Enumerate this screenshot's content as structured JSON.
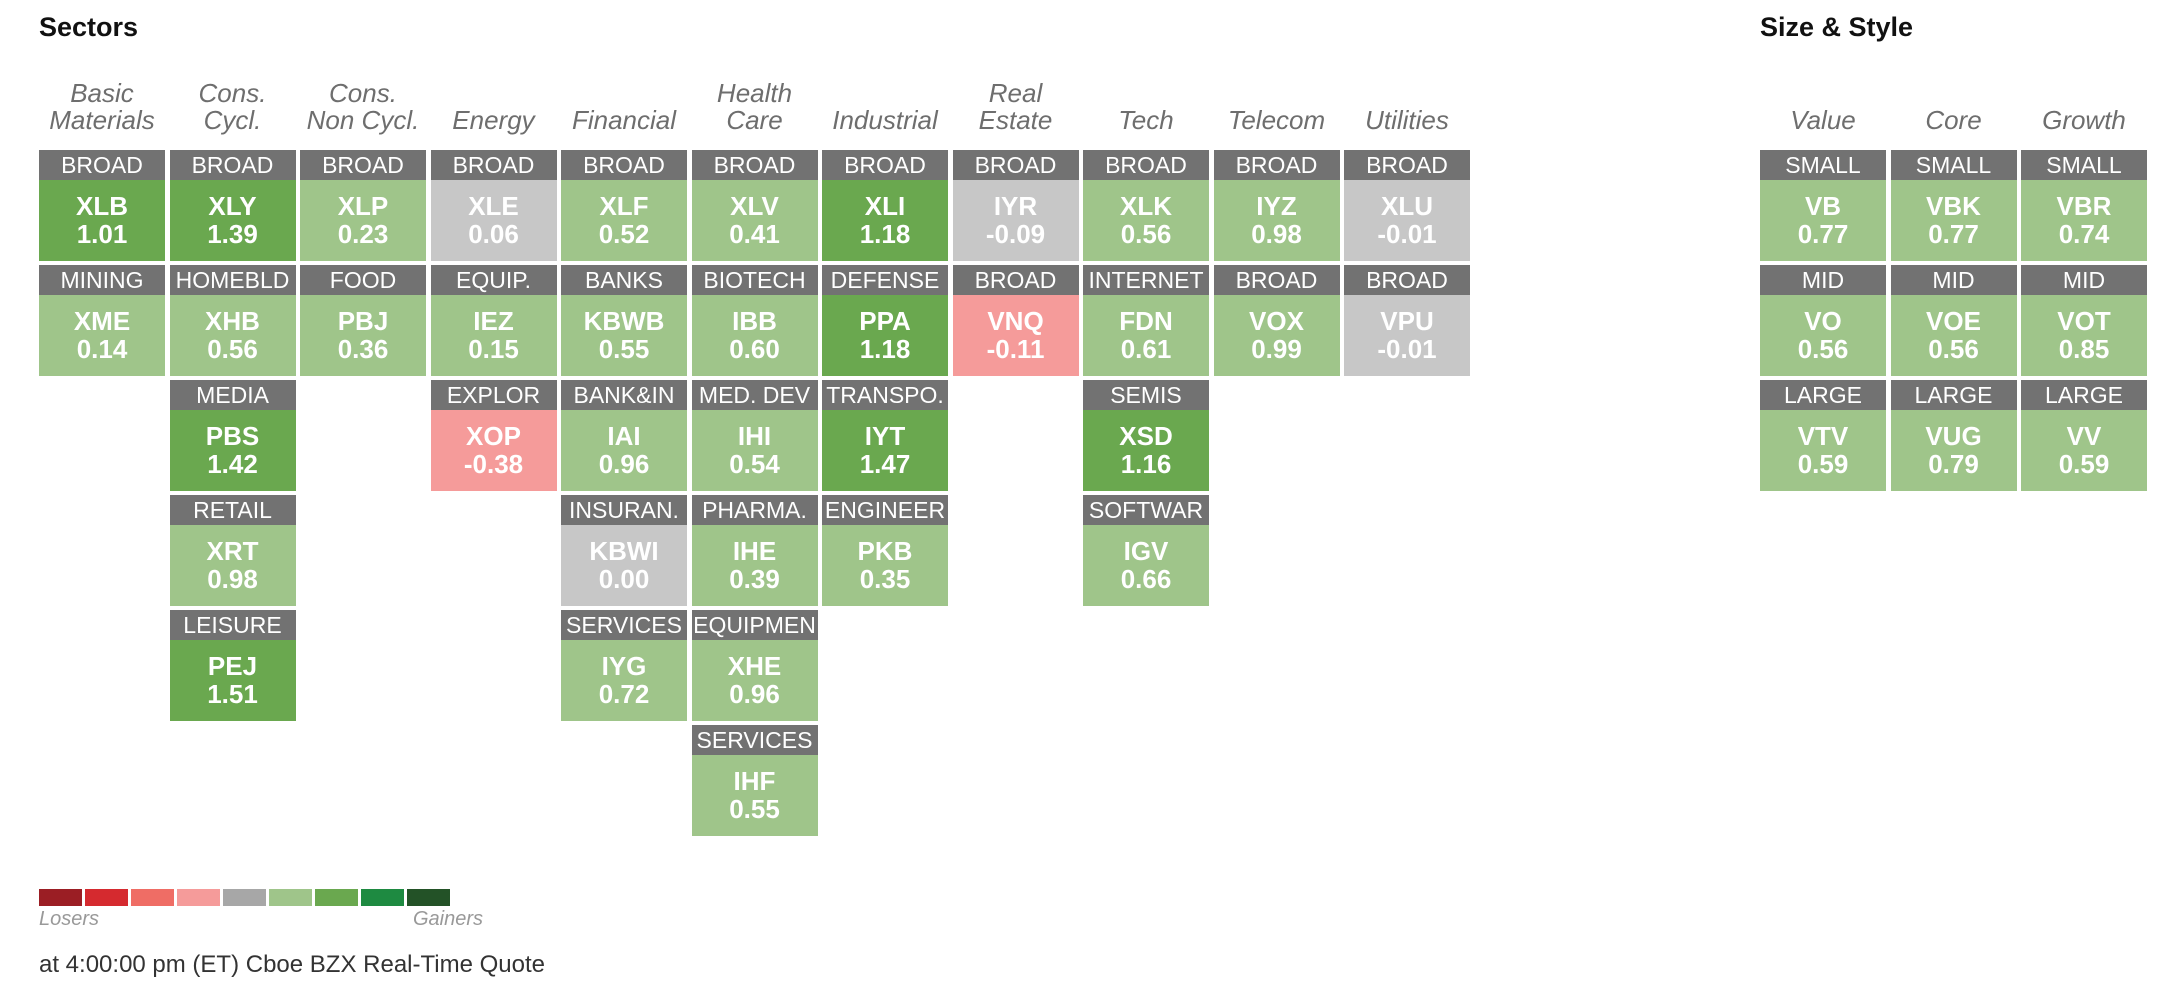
{
  "sectors_title": "Sectors",
  "size_style_title": "Size & Style",
  "colors": {
    "green_dark": "#6aa84f",
    "green_light": "#9fc58a",
    "neutral": "#c7c7c7",
    "red_light": "#f59b9a",
    "label_bg": "#727272"
  },
  "sector_columns": [
    {
      "header": [
        "Basic",
        "Materials"
      ],
      "tiles": [
        {
          "label": "BROAD",
          "ticker": "XLB",
          "change": "1.01",
          "color": "#6aa84f"
        },
        {
          "label": "MINING",
          "ticker": "XME",
          "change": "0.14",
          "color": "#9fc58a"
        }
      ]
    },
    {
      "header": [
        "Cons.",
        "Cycl."
      ],
      "tiles": [
        {
          "label": "BROAD",
          "ticker": "XLY",
          "change": "1.39",
          "color": "#6aa84f"
        },
        {
          "label": "HOMEBLD",
          "ticker": "XHB",
          "change": "0.56",
          "color": "#9fc58a"
        },
        {
          "label": "MEDIA",
          "ticker": "PBS",
          "change": "1.42",
          "color": "#6aa84f"
        },
        {
          "label": "RETAIL",
          "ticker": "XRT",
          "change": "0.98",
          "color": "#9fc58a"
        },
        {
          "label": "LEISURE",
          "ticker": "PEJ",
          "change": "1.51",
          "color": "#6aa84f"
        }
      ]
    },
    {
      "header": [
        "Cons.",
        "Non Cycl."
      ],
      "tiles": [
        {
          "label": "BROAD",
          "ticker": "XLP",
          "change": "0.23",
          "color": "#9fc58a"
        },
        {
          "label": "FOOD",
          "ticker": "PBJ",
          "change": "0.36",
          "color": "#9fc58a"
        }
      ]
    },
    {
      "header": [
        "",
        "Energy"
      ],
      "tiles": [
        {
          "label": "BROAD",
          "ticker": "XLE",
          "change": "0.06",
          "color": "#c7c7c7"
        },
        {
          "label": "EQUIP.",
          "ticker": "IEZ",
          "change": "0.15",
          "color": "#9fc58a"
        },
        {
          "label": "EXPLOR",
          "ticker": "XOP",
          "change": "-0.38",
          "color": "#f59b9a"
        }
      ]
    },
    {
      "header": [
        "",
        "Financial"
      ],
      "tiles": [
        {
          "label": "BROAD",
          "ticker": "XLF",
          "change": "0.52",
          "color": "#9fc58a"
        },
        {
          "label": "BANKS",
          "ticker": "KBWB",
          "change": "0.55",
          "color": "#9fc58a"
        },
        {
          "label": "BANK&IN",
          "ticker": "IAI",
          "change": "0.96",
          "color": "#9fc58a"
        },
        {
          "label": "INSURAN.",
          "ticker": "KBWI",
          "change": "0.00",
          "color": "#c7c7c7"
        },
        {
          "label": "SERVICES",
          "ticker": "IYG",
          "change": "0.72",
          "color": "#9fc58a"
        }
      ]
    },
    {
      "header": [
        "Health",
        "Care"
      ],
      "tiles": [
        {
          "label": "BROAD",
          "ticker": "XLV",
          "change": "0.41",
          "color": "#9fc58a"
        },
        {
          "label": "BIOTECH",
          "ticker": "IBB",
          "change": "0.60",
          "color": "#9fc58a"
        },
        {
          "label": "MED. DEV",
          "ticker": "IHI",
          "change": "0.54",
          "color": "#9fc58a"
        },
        {
          "label": "PHARMA.",
          "ticker": "IHE",
          "change": "0.39",
          "color": "#9fc58a"
        },
        {
          "label": "EQUIPMEN",
          "ticker": "XHE",
          "change": "0.96",
          "color": "#9fc58a"
        },
        {
          "label": "SERVICES",
          "ticker": "IHF",
          "change": "0.55",
          "color": "#9fc58a"
        }
      ]
    },
    {
      "header": [
        "",
        "Industrial"
      ],
      "tiles": [
        {
          "label": "BROAD",
          "ticker": "XLI",
          "change": "1.18",
          "color": "#6aa84f"
        },
        {
          "label": "DEFENSE",
          "ticker": "PPA",
          "change": "1.18",
          "color": "#6aa84f"
        },
        {
          "label": "TRANSPO.",
          "ticker": "IYT",
          "change": "1.47",
          "color": "#6aa84f"
        },
        {
          "label": "ENGINEER",
          "ticker": "PKB",
          "change": "0.35",
          "color": "#9fc58a"
        }
      ]
    },
    {
      "header": [
        "Real",
        "Estate"
      ],
      "tiles": [
        {
          "label": "BROAD",
          "ticker": "IYR",
          "change": "-0.09",
          "color": "#c7c7c7"
        },
        {
          "label": "BROAD",
          "ticker": "VNQ",
          "change": "-0.11",
          "color": "#f59b9a"
        }
      ]
    },
    {
      "header": [
        "",
        "Tech"
      ],
      "tiles": [
        {
          "label": "BROAD",
          "ticker": "XLK",
          "change": "0.56",
          "color": "#9fc58a"
        },
        {
          "label": "INTERNET",
          "ticker": "FDN",
          "change": "0.61",
          "color": "#9fc58a"
        },
        {
          "label": "SEMIS",
          "ticker": "XSD",
          "change": "1.16",
          "color": "#6aa84f"
        },
        {
          "label": "SOFTWAR",
          "ticker": "IGV",
          "change": "0.66",
          "color": "#9fc58a"
        }
      ]
    },
    {
      "header": [
        "",
        "Telecom"
      ],
      "tiles": [
        {
          "label": "BROAD",
          "ticker": "IYZ",
          "change": "0.98",
          "color": "#9fc58a"
        },
        {
          "label": "BROAD",
          "ticker": "VOX",
          "change": "0.99",
          "color": "#9fc58a"
        }
      ]
    },
    {
      "header": [
        "",
        "Utilities"
      ],
      "tiles": [
        {
          "label": "BROAD",
          "ticker": "XLU",
          "change": "-0.01",
          "color": "#c7c7c7"
        },
        {
          "label": "BROAD",
          "ticker": "VPU",
          "change": "-0.01",
          "color": "#c7c7c7"
        }
      ]
    }
  ],
  "style_columns": [
    {
      "header": [
        "",
        "Value"
      ],
      "tiles": [
        {
          "label": "SMALL",
          "ticker": "VB",
          "change": "0.77",
          "color": "#9fc58a"
        },
        {
          "label": "MID",
          "ticker": "VO",
          "change": "0.56",
          "color": "#9fc58a"
        },
        {
          "label": "LARGE",
          "ticker": "VTV",
          "change": "0.59",
          "color": "#9fc58a"
        }
      ]
    },
    {
      "header": [
        "",
        "Core"
      ],
      "tiles": [
        {
          "label": "SMALL",
          "ticker": "VBK",
          "change": "0.77",
          "color": "#9fc58a"
        },
        {
          "label": "MID",
          "ticker": "VOE",
          "change": "0.56",
          "color": "#9fc58a"
        },
        {
          "label": "LARGE",
          "ticker": "VUG",
          "change": "0.79",
          "color": "#9fc58a"
        }
      ]
    },
    {
      "header": [
        "",
        "Growth"
      ],
      "tiles": [
        {
          "label": "SMALL",
          "ticker": "VBR",
          "change": "0.74",
          "color": "#9fc58a"
        },
        {
          "label": "MID",
          "ticker": "VOT",
          "change": "0.85",
          "color": "#9fc58a"
        },
        {
          "label": "LARGE",
          "ticker": "VV",
          "change": "0.59",
          "color": "#9fc58a"
        }
      ]
    }
  ],
  "legend": {
    "swatches": [
      "#9b1e24",
      "#d52a2f",
      "#ef6d65",
      "#f59b9a",
      "#a7a7a7",
      "#9fc58a",
      "#6aa84f",
      "#1e8a41",
      "#235227"
    ],
    "losers_label": "Losers",
    "gainers_label": "Gainers"
  },
  "footer": "at 4:00:00 pm (ET) Cboe BZX Real-Time Quote"
}
